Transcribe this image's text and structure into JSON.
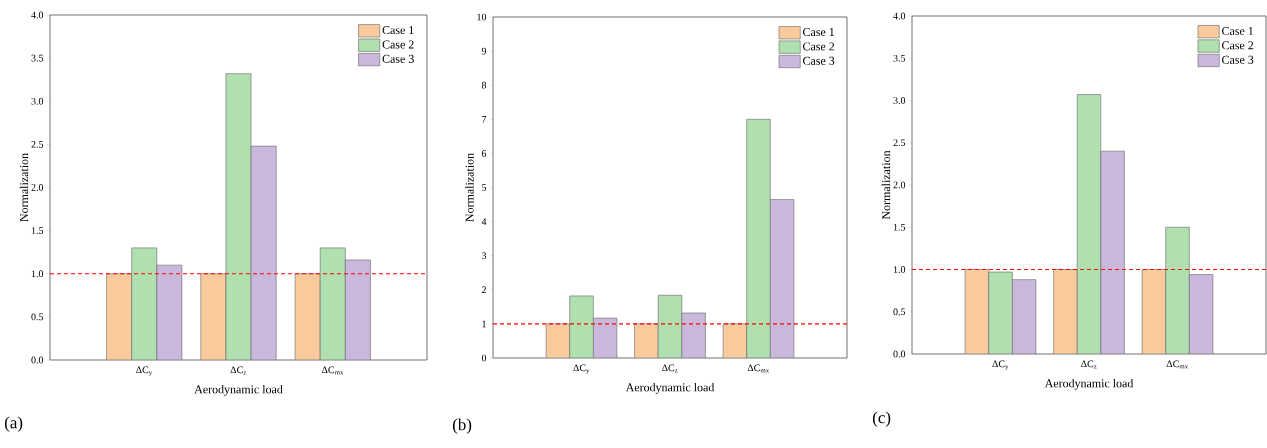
{
  "chart_data": [
    {
      "type": "bar",
      "xlabel": "Aerodynamic load",
      "ylabel": "Normalization",
      "categories": [
        "ΔC$_{y}$",
        "ΔC$_{z}$",
        "ΔC$_{mx}$"
      ],
      "series": [
        {
          "name": "Case 1",
          "color": "#f9cb9c",
          "values": [
            1.0,
            1.0,
            1.0
          ]
        },
        {
          "name": "Case 2",
          "color": "#b0e0b0",
          "values": [
            1.3,
            3.32,
            1.3
          ]
        },
        {
          "name": "Case 3",
          "color": "#c9b8dc",
          "values": [
            1.1,
            2.48,
            1.16
          ]
        }
      ],
      "ylim": [
        0,
        4
      ],
      "yticks": [
        {
          "value": 0,
          "label": "0.0"
        },
        0.5,
        {
          "value": 1,
          "label": "1.0"
        },
        1.5,
        {
          "value": 2,
          "label": "2.0"
        },
        2.5,
        {
          "value": 3,
          "label": "3.0"
        },
        3.5,
        {
          "value": 4,
          "label": "4.0"
        }
      ],
      "ref_lines": [
        {
          "axis": "y",
          "value": 1,
          "color": "#ff0000",
          "line_style": "dashed"
        }
      ],
      "legend": "top right",
      "annotations": [
        "(a)"
      ]
    },
    {
      "type": "bar",
      "xlabel": "Aerodynamic load",
      "ylabel": "Normalization",
      "categories": [
        "ΔC$_{y}$",
        "ΔC$_{z}$",
        "ΔC$_{mx}$"
      ],
      "series": [
        {
          "name": "Case 1",
          "color": "#f9cb9c",
          "values": [
            1.0,
            1.0,
            1.0
          ]
        },
        {
          "name": "Case 2",
          "color": "#b0e0b0",
          "values": [
            1.82,
            1.84,
            7.0
          ]
        },
        {
          "name": "Case 3",
          "color": "#c9b8dc",
          "values": [
            1.17,
            1.32,
            4.65
          ]
        }
      ],
      "ylim": [
        0,
        10
      ],
      "yticks": [
        0,
        1,
        2,
        3,
        4,
        5,
        6,
        7,
        8,
        9,
        10
      ],
      "ref_lines": [
        {
          "axis": "y",
          "value": 1,
          "color": "#ff0000",
          "line_style": "dashed"
        }
      ],
      "legend": "top right",
      "annotations": [
        "(b)"
      ]
    },
    {
      "type": "bar",
      "xlabel": "Aerodynamic load",
      "ylabel": "Normalization",
      "categories": [
        "ΔC$_{y}$",
        "ΔC$_{z}$",
        "ΔC$_{mx}$"
      ],
      "series": [
        {
          "name": "Case 1",
          "color": "#f9cb9c",
          "values": [
            1.0,
            1.0,
            1.0
          ]
        },
        {
          "name": "Case 2",
          "color": "#b0e0b0",
          "values": [
            0.97,
            3.07,
            1.5
          ]
        },
        {
          "name": "Case 3",
          "color": "#c9b8dc",
          "values": [
            0.88,
            2.4,
            0.94
          ]
        }
      ],
      "ylim": [
        0,
        4
      ],
      "yticks": [
        {
          "value": 0,
          "label": "0.0"
        },
        0.5,
        {
          "value": 1,
          "label": "1.0"
        },
        1.5,
        {
          "value": 2,
          "label": "2.0"
        },
        2.5,
        {
          "value": 3,
          "label": "3.0"
        },
        3.5,
        {
          "value": 4,
          "label": "4.0"
        }
      ],
      "ref_lines": [
        {
          "axis": "y",
          "value": 1,
          "color": "#ff0000",
          "line_style": "dashed"
        }
      ],
      "legend": "top right",
      "annotations": [
        "(c)"
      ]
    }
  ]
}
